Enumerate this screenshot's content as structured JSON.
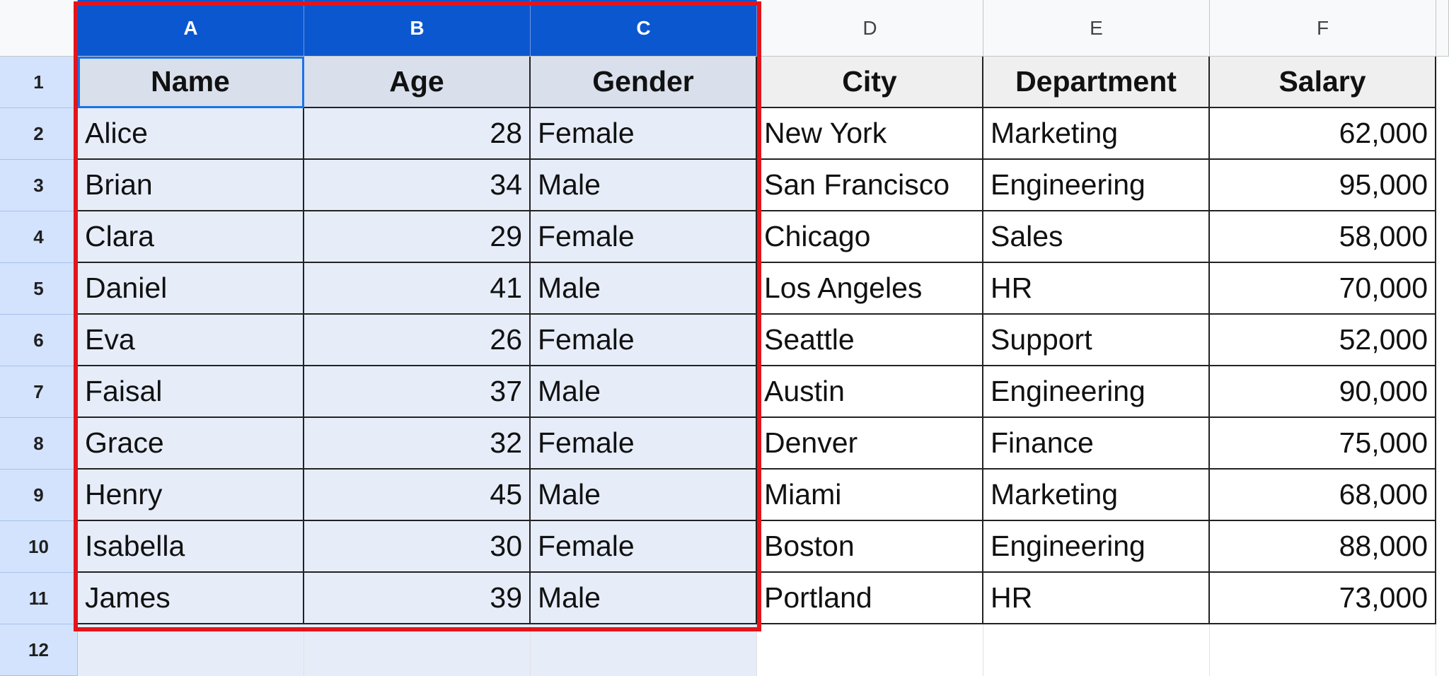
{
  "column_headers": [
    "A",
    "B",
    "C",
    "D",
    "E",
    "F"
  ],
  "row_headers": [
    "1",
    "2",
    "3",
    "4",
    "5",
    "6",
    "7",
    "8",
    "9",
    "10",
    "11",
    "12"
  ],
  "table": {
    "header": [
      "Name",
      "Age",
      "Gender",
      "City",
      "Department",
      "Salary"
    ],
    "rows": [
      [
        "Alice",
        28,
        "Female",
        "New York",
        "Marketing",
        "62,000"
      ],
      [
        "Brian",
        34,
        "Male",
        "San Francisco",
        "Engineering",
        "95,000"
      ],
      [
        "Clara",
        29,
        "Female",
        "Chicago",
        "Sales",
        "58,000"
      ],
      [
        "Daniel",
        41,
        "Male",
        "Los Angeles",
        "HR",
        "70,000"
      ],
      [
        "Eva",
        26,
        "Female",
        "Seattle",
        "Support",
        "52,000"
      ],
      [
        "Faisal",
        37,
        "Male",
        "Austin",
        "Engineering",
        "90,000"
      ],
      [
        "Grace",
        32,
        "Female",
        "Denver",
        "Finance",
        "75,000"
      ],
      [
        "Henry",
        45,
        "Male",
        "Miami",
        "Marketing",
        "68,000"
      ],
      [
        "Isabella",
        30,
        "Female",
        "Boston",
        "Engineering",
        "88,000"
      ],
      [
        "James",
        39,
        "Male",
        "Portland",
        "HR",
        "73,000"
      ]
    ]
  }
}
